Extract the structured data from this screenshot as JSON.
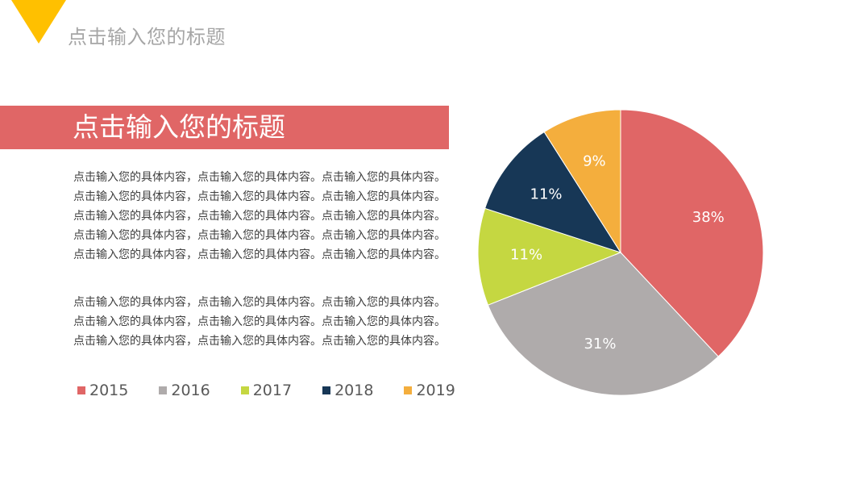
{
  "header": {
    "top_title": "点击输入您的标题"
  },
  "banner": {
    "title": "点击输入您的标题"
  },
  "body": {
    "paragraph1": "点击输入您的具体内容，点击输入您的具体内容。点击输入您的具体内容。点击输入您的具体内容，点击输入您的具体内容。点击输入您的具体内容。点击输入您的具体内容，点击输入您的具体内容。点击输入您的具体内容。点击输入您的具体内容，点击输入您的具体内容。点击输入您的具体内容。点击输入您的具体内容，点击输入您的具体内容。点击输入您的具体内容。",
    "paragraph2": "点击输入您的具体内容，点击输入您的具体内容。点击输入您的具体内容。点击输入您的具体内容，点击输入您的具体内容。点击输入您的具体内容。点击输入您的具体内容，点击输入您的具体内容。点击输入您的具体内容。"
  },
  "colors": {
    "accent_yellow": "#ffc000",
    "banner_red": "#e06666"
  },
  "chart_data": {
    "type": "pie",
    "title": "",
    "categories": [
      "2015",
      "2016",
      "2017",
      "2018",
      "2019"
    ],
    "values": [
      38,
      31,
      11,
      11,
      9
    ],
    "labels": [
      "38%",
      "31%",
      "11%",
      "11%",
      "9%"
    ],
    "colors": [
      "#e06666",
      "#afabab",
      "#c5d741",
      "#173756",
      "#f4ae3d"
    ],
    "start_angle_deg": 0,
    "direction": "clockwise",
    "legend_position": "bottom-left"
  }
}
